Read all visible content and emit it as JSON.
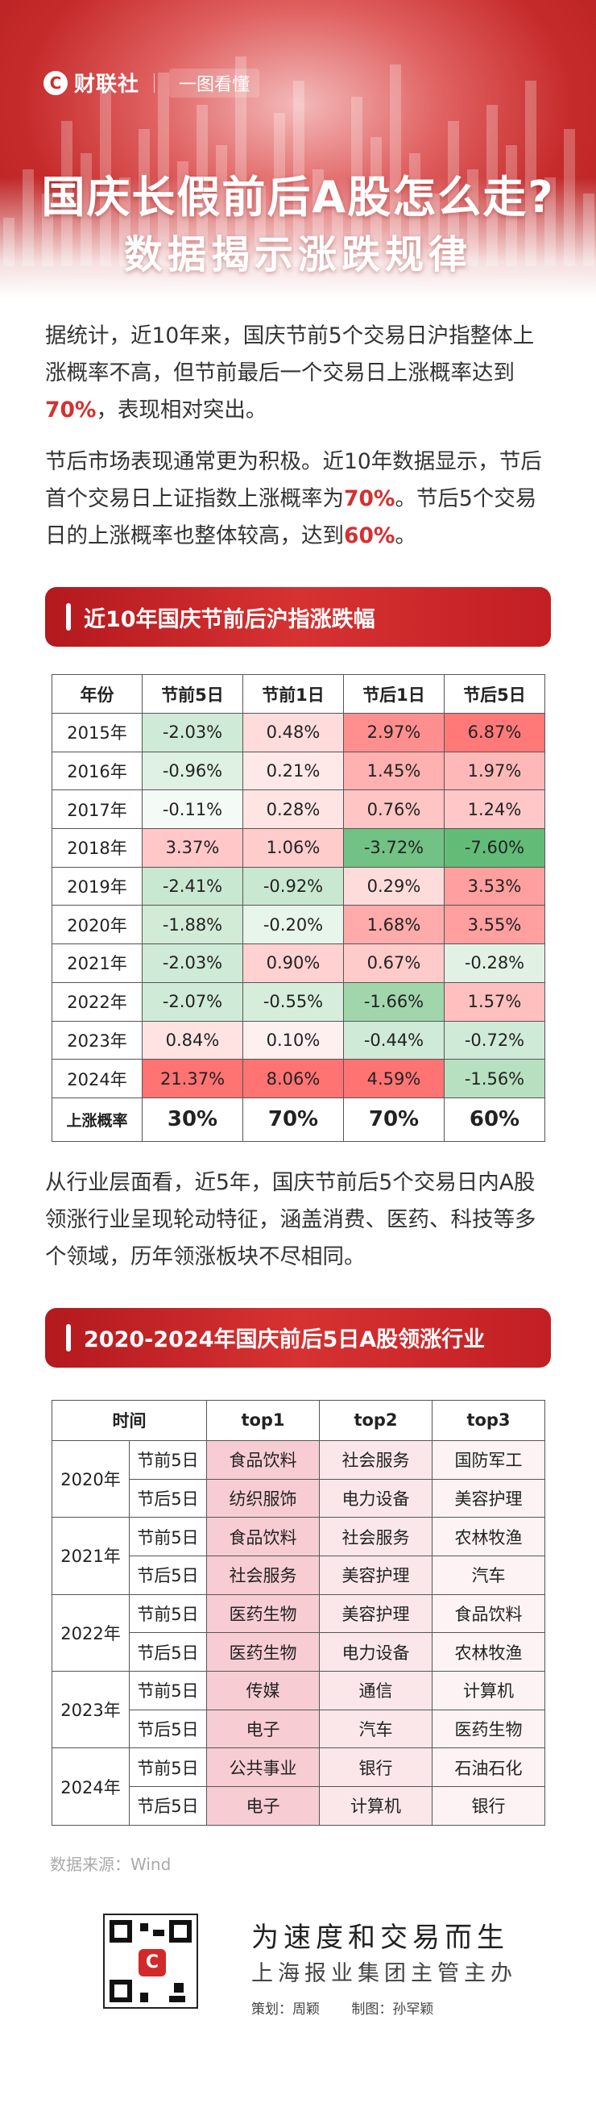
{
  "brand": {
    "logo": "C",
    "name": "财联社",
    "tag": "一图看懂"
  },
  "title": {
    "line1": "国庆长假前后A股怎么走?",
    "line2": "数据揭示涨跌规律"
  },
  "intro": {
    "p1": {
      "text": "据统计，近10年来，国庆节前5个交易日沪指整体上涨概率不高，但节前最后一个交易日上涨概率达到",
      "hl": "70%",
      "tail": "，表现相对突出。"
    },
    "p2": {
      "text": "节后市场表现通常更为积极。近10年数据显示，节后首个交易日上证指数上涨概率为",
      "hl1": "70%",
      "mid": "。节后5个交易日的上涨概率也整体较高，达到",
      "hl2": "60%",
      "tail": "。"
    }
  },
  "section1": {
    "title": "近10年国庆节前后沪指涨跌幅",
    "headers": [
      "年份",
      "节前5日",
      "节前1日",
      "节后1日",
      "节后5日"
    ],
    "rows": [
      [
        "2015年",
        "-2.03%",
        "0.48%",
        "2.97%",
        "6.87%"
      ],
      [
        "2016年",
        "-0.96%",
        "0.21%",
        "1.45%",
        "1.97%"
      ],
      [
        "2017年",
        "-0.11%",
        "0.28%",
        "0.76%",
        "1.24%"
      ],
      [
        "2018年",
        "3.37%",
        "1.06%",
        "-3.72%",
        "-7.60%"
      ],
      [
        "2019年",
        "-2.41%",
        "-0.92%",
        "0.29%",
        "3.53%"
      ],
      [
        "2020年",
        "-1.88%",
        "-0.20%",
        "1.68%",
        "3.55%"
      ],
      [
        "2021年",
        "-2.03%",
        "0.90%",
        "0.67%",
        "-0.28%"
      ],
      [
        "2022年",
        "-2.07%",
        "-0.55%",
        "-1.66%",
        "1.57%"
      ],
      [
        "2023年",
        "0.84%",
        "0.10%",
        "-0.44%",
        "-0.72%"
      ],
      [
        "2024年",
        "21.37%",
        "8.06%",
        "4.59%",
        "-1.56%"
      ]
    ],
    "rate_label": "上涨概率",
    "rates": [
      "30%",
      "70%",
      "70%",
      "60%"
    ],
    "colors": {
      "up": "#e85c5c",
      "down": "#4caf61"
    }
  },
  "intro2": "从行业层面看，近5年，国庆节前后5个交易日内A股领涨行业呈现轮动特征，涵盖消费、医药、科技等多个领域，历年领涨板块不尽相同。",
  "section2": {
    "title": "2020-2024年国庆前后5日A股领涨行业",
    "headers": [
      "时间",
      "top1",
      "top2",
      "top3"
    ],
    "years": [
      {
        "year": "2020年",
        "rows": [
          {
            "period": "节前5日",
            "top": [
              "食品饮料",
              "社会服务",
              "国防军工"
            ]
          },
          {
            "period": "节后5日",
            "top": [
              "纺织服饰",
              "电力设备",
              "美容护理"
            ]
          }
        ]
      },
      {
        "year": "2021年",
        "rows": [
          {
            "period": "节前5日",
            "top": [
              "食品饮料",
              "社会服务",
              "农林牧渔"
            ]
          },
          {
            "period": "节后5日",
            "top": [
              "社会服务",
              "美容护理",
              "汽车"
            ]
          }
        ]
      },
      {
        "year": "2022年",
        "rows": [
          {
            "period": "节前5日",
            "top": [
              "医药生物",
              "美容护理",
              "食品饮料"
            ]
          },
          {
            "period": "节后5日",
            "top": [
              "医药生物",
              "电力设备",
              "农林牧渔"
            ]
          }
        ]
      },
      {
        "year": "2023年",
        "rows": [
          {
            "period": "节前5日",
            "top": [
              "传媒",
              "通信",
              "计算机"
            ]
          },
          {
            "period": "节后5日",
            "top": [
              "电子",
              "汽车",
              "医药生物"
            ]
          }
        ]
      },
      {
        "year": "2024年",
        "rows": [
          {
            "period": "节前5日",
            "top": [
              "公共事业",
              "银行",
              "石油石化"
            ]
          },
          {
            "period": "节后5日",
            "top": [
              "电子",
              "计算机",
              "银行"
            ]
          }
        ]
      }
    ],
    "col_colors": [
      "#f7cdd3",
      "#fbe7ea",
      "#fdf3f4"
    ]
  },
  "source": "数据来源：Wind",
  "footer": {
    "qr_logo": "C",
    "slogan1": "为速度和交易而生",
    "slogan2": "上海报业集团主管主办",
    "planner": "策划：周颖",
    "maker": "制图：孙罕颖"
  }
}
